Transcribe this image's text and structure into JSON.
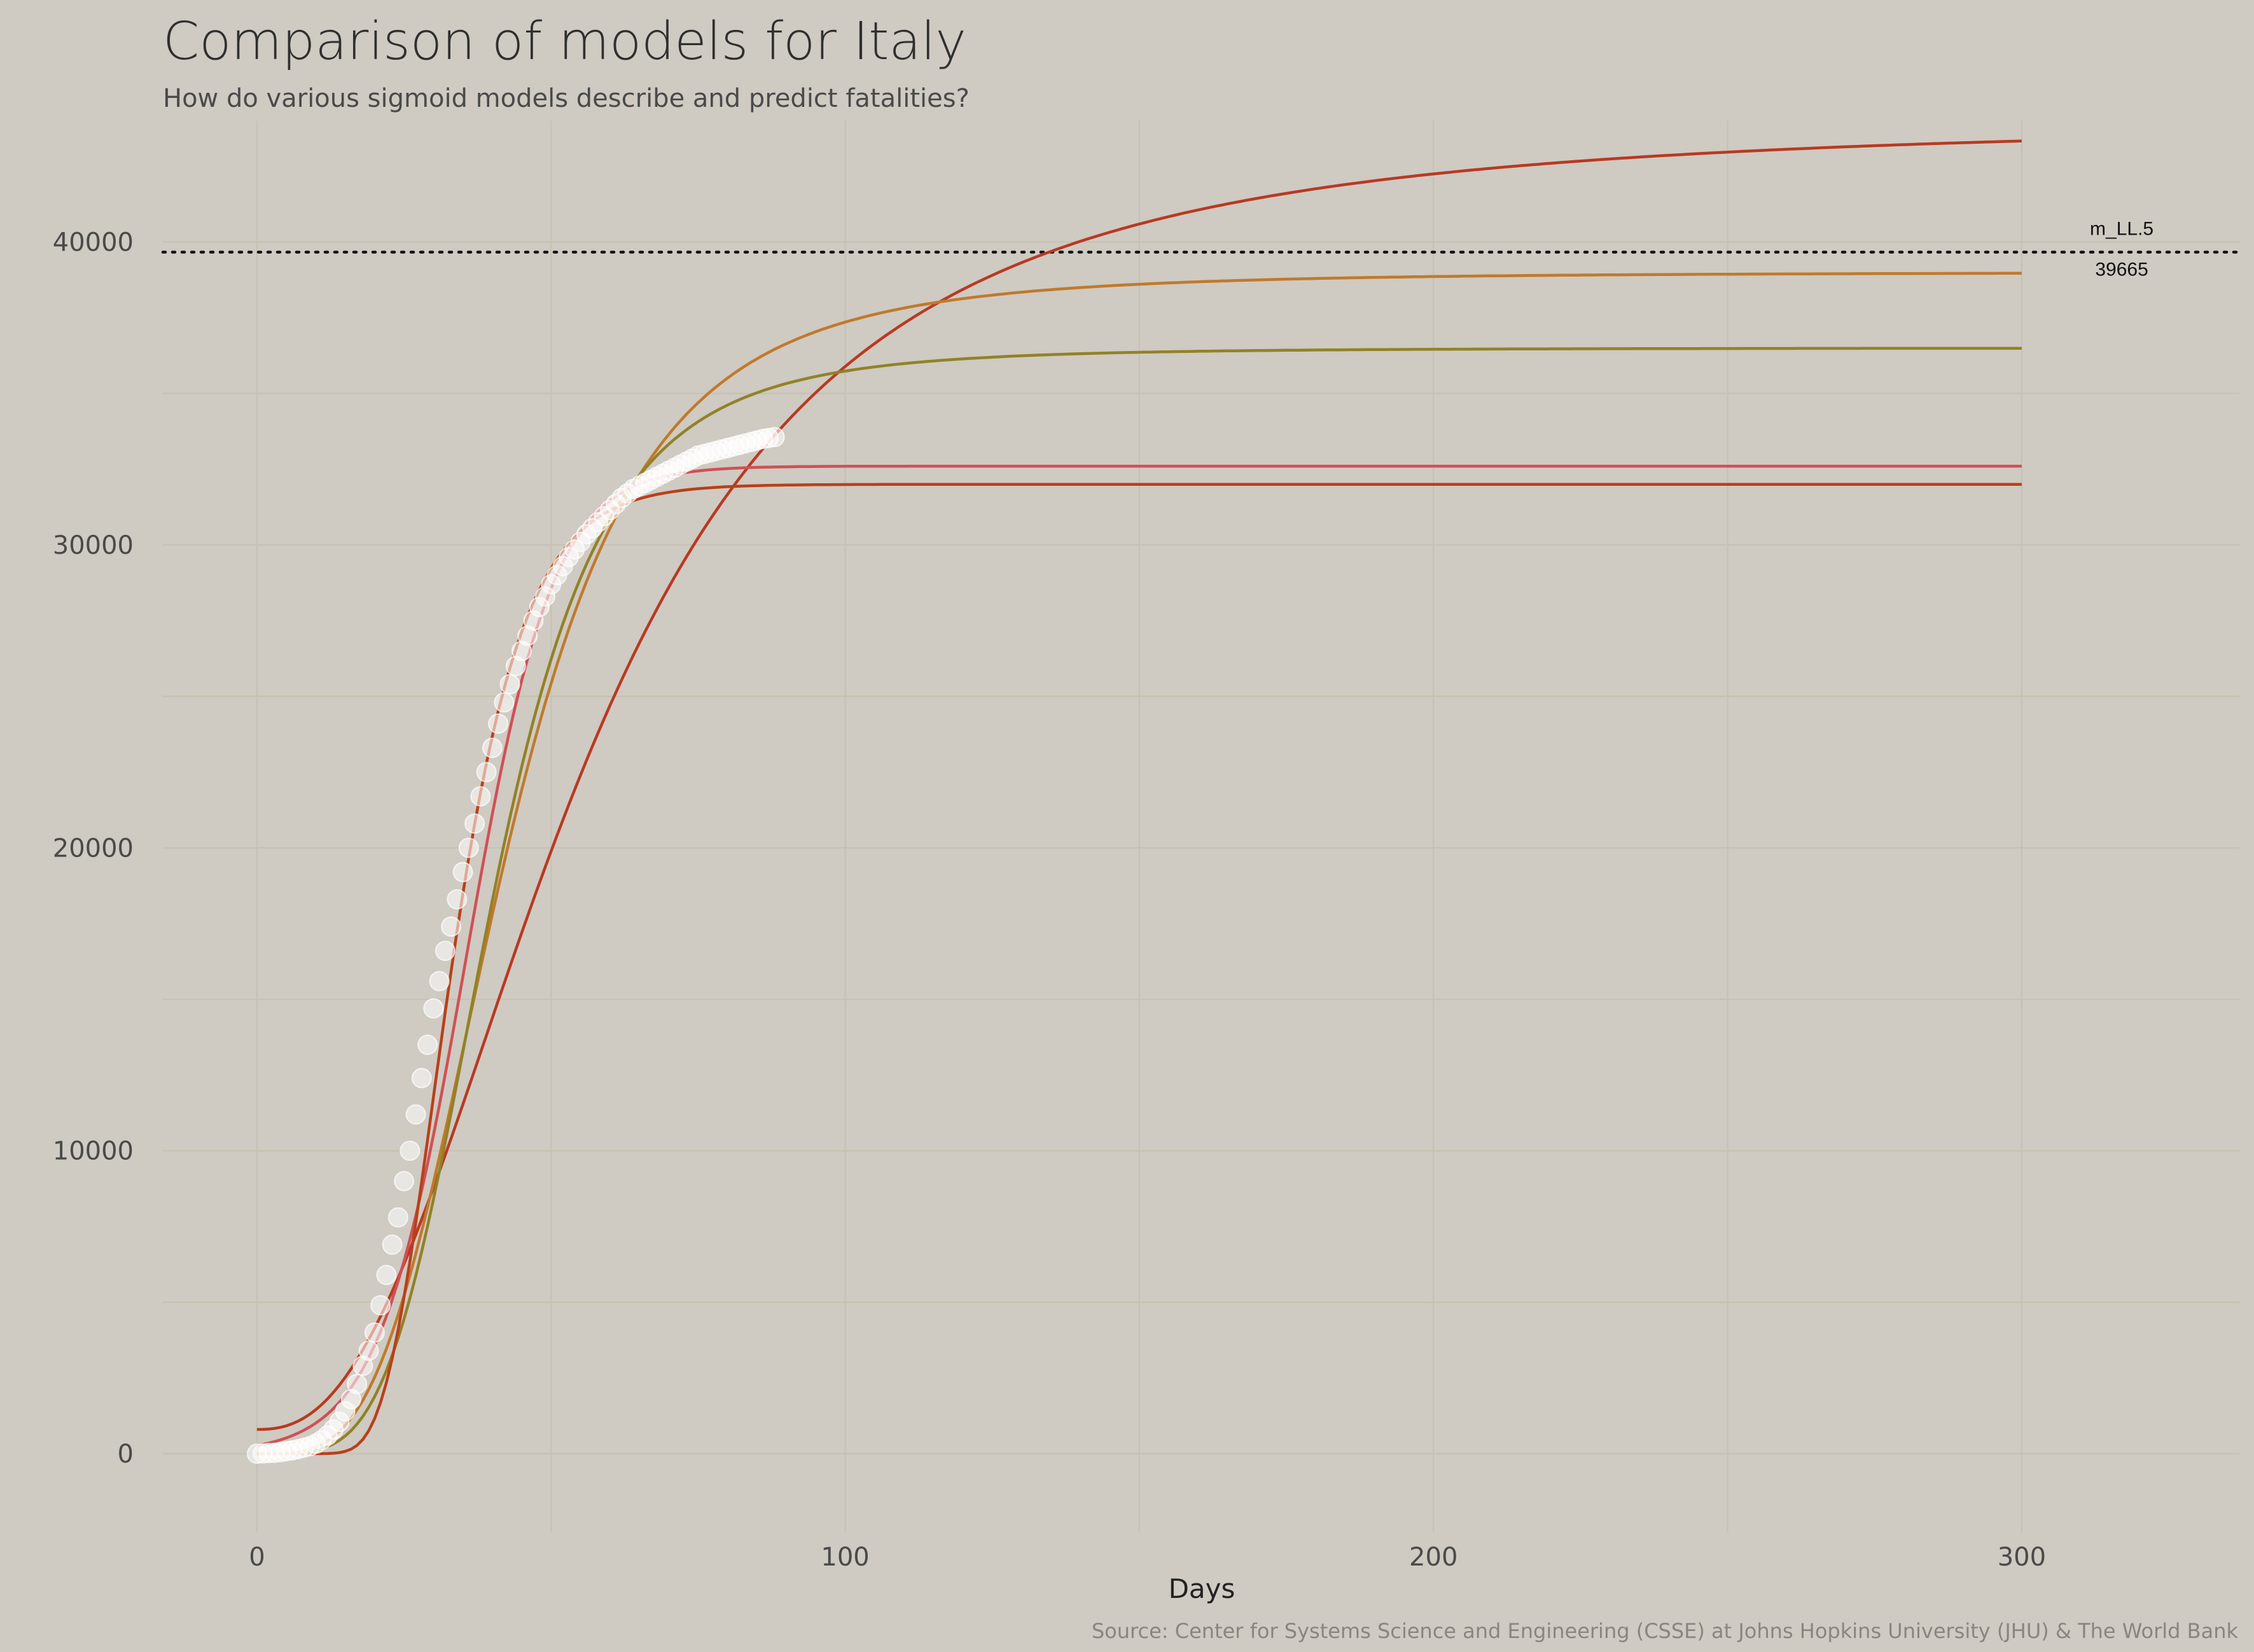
{
  "chart_data": {
    "type": "line",
    "title": "Comparison of models for Italy",
    "subtitle": "How do various sigmoid models describe and predict fatalities?",
    "xlabel": "Days",
    "ylabel": "",
    "caption": "Source: Center for Systems Science and Engineering (CSSE) at Johns Hopkins University (JHU) & The World Bank",
    "xlim": [
      -16,
      337
    ],
    "ylim": [
      -2600,
      44000
    ],
    "x_ticks": [
      0,
      100,
      200,
      300
    ],
    "y_ticks": [
      0,
      10000,
      20000,
      30000,
      40000
    ],
    "grid": true,
    "reference_line": {
      "y": 39665,
      "label": "m_LL.5",
      "value_label": "39665",
      "style": "dotted"
    },
    "series": [
      {
        "kind": "hill",
        "params": {
          "a": 800,
          "d": 44000,
          "e": 55,
          "b": 2.45
        },
        "color": "#b83a22"
      },
      {
        "kind": "hill",
        "params": {
          "a": 0,
          "d": 39000,
          "e": 42,
          "b": 3.6
        },
        "color": "#c07a2c"
      },
      {
        "kind": "hill",
        "params": {
          "a": 0,
          "d": 36500,
          "e": 40,
          "b": 4.2
        },
        "color": "#918227"
      },
      {
        "kind": "logistic",
        "params": {
          "a": 0,
          "d": 32600,
          "e": 35.5,
          "b": 0.135
        },
        "color": "#d05055"
      },
      {
        "kind": "gompertz",
        "params": {
          "a": 0,
          "d": 32000,
          "e": 30,
          "b": 0.12
        },
        "color": "#b8401a"
      }
    ],
    "observed": {
      "color": "#ffffff",
      "x": [
        0,
        1,
        2,
        3,
        4,
        5,
        6,
        7,
        8,
        9,
        10,
        11,
        12,
        13,
        14,
        15,
        16,
        17,
        18,
        19,
        20,
        21,
        22,
        23,
        24,
        25,
        26,
        27,
        28,
        29,
        30,
        31,
        32,
        33,
        34,
        35,
        36,
        37,
        38,
        39,
        40,
        41,
        42,
        43,
        44,
        45,
        46,
        47,
        48,
        49,
        50,
        51,
        52,
        53,
        54,
        55,
        56,
        57,
        58,
        59,
        60,
        61,
        62,
        63,
        64,
        65,
        66,
        67,
        68,
        69,
        70,
        71,
        72,
        73,
        74,
        75,
        76,
        77,
        78,
        79,
        80,
        81,
        82,
        83,
        84,
        85,
        86,
        87,
        88
      ],
      "y": [
        0,
        10,
        20,
        30,
        50,
        80,
        110,
        150,
        200,
        250,
        330,
        450,
        600,
        800,
        1050,
        1400,
        1800,
        2300,
        2900,
        3400,
        4000,
        4900,
        5900,
        6900,
        7800,
        9000,
        10000,
        11200,
        12400,
        13500,
        14700,
        15600,
        16600,
        17400,
        18300,
        19200,
        20000,
        20800,
        21700,
        22500,
        23300,
        24100,
        24800,
        25400,
        26000,
        26500,
        27000,
        27500,
        27950,
        28300,
        28700,
        29000,
        29300,
        29600,
        29850,
        30100,
        30350,
        30550,
        30750,
        30950,
        31150,
        31350,
        31550,
        31700,
        31850,
        31950,
        32050,
        32150,
        32250,
        32350,
        32450,
        32550,
        32650,
        32750,
        32850,
        32950,
        33000,
        33050,
        33100,
        33150,
        33200,
        33250,
        33300,
        33350,
        33400,
        33450,
        33500,
        33530,
        33560
      ]
    }
  }
}
